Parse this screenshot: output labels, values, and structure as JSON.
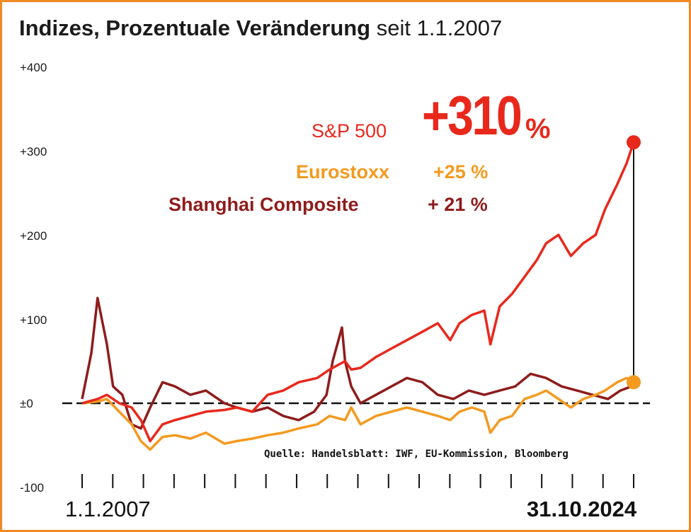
{
  "title": {
    "bold": "Indizes, Prozentuale Veränderung",
    "light": "seit 1.1.2007"
  },
  "y_ticks": [
    "+400",
    "+300",
    "+200",
    "+100",
    "±0",
    "-100"
  ],
  "legend": {
    "sp500": {
      "name": "S&P 500",
      "value_num": "+310",
      "value_pct": "%"
    },
    "eurostoxx": {
      "name": "Eurostoxx",
      "value": "+25 %"
    },
    "shanghai": {
      "name": "Shanghai Composite",
      "value": "+ 21 %"
    }
  },
  "source": "Quelle: Handelsblatt: IWF, EU-Kommission, Bloomberg",
  "x_labels": {
    "start": "1.1.2007",
    "end": "31.10.2024"
  },
  "colors": {
    "sp500": "#e8281c",
    "eurostoxx": "#f39a1f",
    "shanghai": "#8e1c1c",
    "frame": "#f08a24"
  },
  "chart_data": {
    "type": "line",
    "title": "Indizes, Prozentuale Veränderung seit 1.1.2007",
    "ylim": [
      -100,
      400
    ],
    "x_range": [
      2007.0,
      2024.83
    ],
    "x_ticks_count": 19,
    "grid": false,
    "series": [
      {
        "name": "S&P 500",
        "color": "#e8281c",
        "x": [
          2007.0,
          2007.5,
          2007.8,
          2008.2,
          2008.6,
          2008.9,
          2009.2,
          2009.6,
          2010.0,
          2010.5,
          2011.0,
          2011.6,
          2012.0,
          2012.5,
          2013.0,
          2013.5,
          2014.0,
          2014.6,
          2015.0,
          2015.5,
          2015.7,
          2016.0,
          2016.5,
          2017.0,
          2017.5,
          2018.0,
          2018.5,
          2018.9,
          2019.2,
          2019.6,
          2020.0,
          2020.2,
          2020.5,
          2020.9,
          2021.3,
          2021.7,
          2022.0,
          2022.4,
          2022.8,
          2023.2,
          2023.6,
          2023.9,
          2024.3,
          2024.6,
          2024.83
        ],
        "values": [
          0,
          5,
          10,
          0,
          -5,
          -20,
          -45,
          -25,
          -20,
          -15,
          -10,
          -8,
          -5,
          -10,
          10,
          15,
          25,
          30,
          40,
          50,
          40,
          42,
          55,
          65,
          75,
          85,
          95,
          75,
          95,
          105,
          110,
          70,
          115,
          130,
          150,
          170,
          190,
          200,
          175,
          190,
          200,
          230,
          260,
          285,
          310
        ]
      },
      {
        "name": "Eurostoxx",
        "color": "#f39a1f",
        "x": [
          2007.0,
          2007.5,
          2007.8,
          2008.2,
          2008.6,
          2008.9,
          2009.2,
          2009.6,
          2010.0,
          2010.5,
          2011.0,
          2011.6,
          2012.0,
          2012.5,
          2013.0,
          2013.5,
          2014.0,
          2014.6,
          2015.0,
          2015.5,
          2015.7,
          2016.0,
          2016.5,
          2017.0,
          2017.5,
          2018.0,
          2018.5,
          2018.9,
          2019.2,
          2019.6,
          2020.0,
          2020.2,
          2020.5,
          2020.9,
          2021.3,
          2021.7,
          2022.0,
          2022.4,
          2022.8,
          2023.2,
          2023.6,
          2023.9,
          2024.3,
          2024.6,
          2024.83
        ],
        "values": [
          0,
          2,
          5,
          -10,
          -25,
          -45,
          -55,
          -40,
          -38,
          -42,
          -35,
          -48,
          -45,
          -42,
          -38,
          -35,
          -30,
          -25,
          -15,
          -20,
          -5,
          -25,
          -15,
          -10,
          -5,
          -10,
          -15,
          -20,
          -10,
          -5,
          -10,
          -35,
          -20,
          -15,
          5,
          10,
          15,
          5,
          -5,
          5,
          10,
          15,
          25,
          30,
          25
        ]
      },
      {
        "name": "Shanghai Composite",
        "color": "#8e1c1c",
        "x": [
          2007.0,
          2007.3,
          2007.5,
          2007.8,
          2008.0,
          2008.3,
          2008.6,
          2008.9,
          2009.2,
          2009.6,
          2010.0,
          2010.5,
          2011.0,
          2011.6,
          2012.0,
          2012.5,
          2013.0,
          2013.5,
          2014.0,
          2014.5,
          2014.9,
          2015.1,
          2015.4,
          2015.5,
          2015.7,
          2016.0,
          2016.5,
          2017.0,
          2017.5,
          2018.0,
          2018.5,
          2019.0,
          2019.5,
          2020.0,
          2020.5,
          2021.0,
          2021.5,
          2022.0,
          2022.5,
          2023.0,
          2023.5,
          2024.0,
          2024.4,
          2024.83
        ],
        "values": [
          5,
          60,
          125,
          70,
          20,
          10,
          -25,
          -30,
          -5,
          25,
          20,
          10,
          15,
          0,
          -5,
          -10,
          -5,
          -15,
          -20,
          -10,
          10,
          50,
          90,
          50,
          20,
          0,
          10,
          20,
          30,
          25,
          10,
          5,
          15,
          10,
          15,
          20,
          35,
          30,
          20,
          15,
          10,
          5,
          15,
          21
        ]
      }
    ]
  }
}
